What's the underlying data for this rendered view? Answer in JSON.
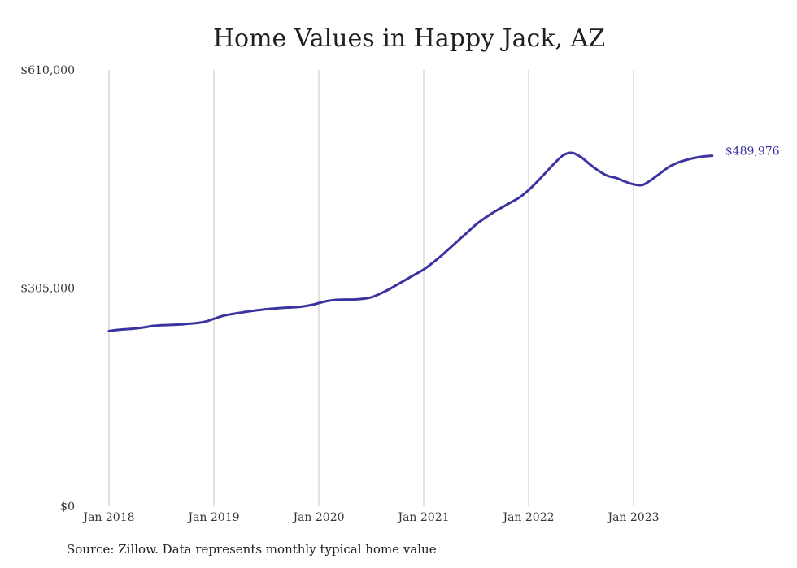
{
  "chart_data": {
    "type": "line",
    "title": "Home Values in Happy Jack, AZ",
    "xlabel": "",
    "ylabel": "",
    "ylim": [
      0,
      610000
    ],
    "yticks": [
      {
        "value": 0,
        "label": "$0"
      },
      {
        "value": 305000,
        "label": "$305,000"
      },
      {
        "value": 610000,
        "label": "$610,000"
      }
    ],
    "xlim": [
      "2018-01",
      "2023-10"
    ],
    "xticks": [
      {
        "date": "2018-01",
        "label": "Jan 2018"
      },
      {
        "date": "2019-01",
        "label": "Jan 2019"
      },
      {
        "date": "2020-01",
        "label": "Jan 2020"
      },
      {
        "date": "2021-01",
        "label": "Jan 2021"
      },
      {
        "date": "2022-01",
        "label": "Jan 2022"
      },
      {
        "date": "2023-01",
        "label": "Jan 2023"
      }
    ],
    "grid": "vertical",
    "legend": "none",
    "line_color": "#3b34a0",
    "end_label": "$489,976",
    "series": [
      {
        "x": [
          "2018-01",
          "2018-02",
          "2018-03",
          "2018-04",
          "2018-05",
          "2018-06",
          "2018-07",
          "2018-08",
          "2018-09",
          "2018-10",
          "2018-11",
          "2018-12",
          "2019-01",
          "2019-02",
          "2019-03",
          "2019-04",
          "2019-05",
          "2019-06",
          "2019-07",
          "2019-08",
          "2019-09",
          "2019-10",
          "2019-11",
          "2019-12",
          "2020-01",
          "2020-02",
          "2020-03",
          "2020-04",
          "2020-05",
          "2020-06",
          "2020-07",
          "2020-08",
          "2020-09",
          "2020-10",
          "2020-11",
          "2020-12",
          "2021-01",
          "2021-02",
          "2021-03",
          "2021-04",
          "2021-05",
          "2021-06",
          "2021-07",
          "2021-08",
          "2021-09",
          "2021-10",
          "2021-11",
          "2021-12",
          "2022-01",
          "2022-02",
          "2022-03",
          "2022-04",
          "2022-05",
          "2022-06",
          "2022-07",
          "2022-08",
          "2022-09",
          "2022-10",
          "2022-11",
          "2022-12",
          "2023-01",
          "2023-02",
          "2023-03",
          "2023-04",
          "2023-05",
          "2023-06",
          "2023-07",
          "2023-08",
          "2023-09",
          "2023-10"
        ],
        "y": [
          245000,
          246500,
          247500,
          248500,
          250000,
          252000,
          253000,
          253500,
          254000,
          255000,
          256000,
          258000,
          262000,
          266000,
          268500,
          270500,
          272500,
          274000,
          275500,
          276500,
          277500,
          278000,
          279000,
          281000,
          284000,
          287000,
          288500,
          289000,
          289000,
          290000,
          292000,
          297000,
          303000,
          310000,
          317000,
          324000,
          331000,
          340000,
          350000,
          361000,
          372000,
          383000,
          394000,
          403000,
          411000,
          418000,
          425000,
          432000,
          442000,
          454000,
          467000,
          480000,
          491000,
          494000,
          488000,
          478000,
          469000,
          462000,
          459000,
          454000,
          450000,
          449000,
          456000,
          465000,
          474000,
          480000,
          484000,
          487000,
          489000,
          489976
        ]
      }
    ]
  },
  "source_note": "Source: Zillow. Data represents monthly typical home value"
}
